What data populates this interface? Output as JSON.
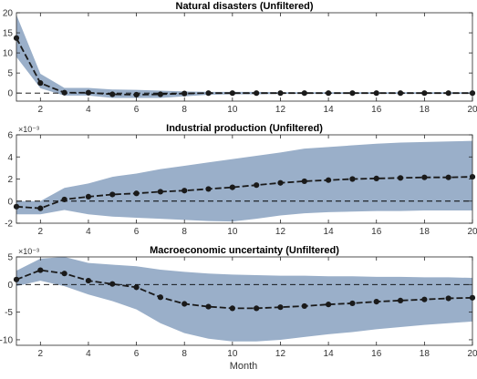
{
  "figure": {
    "xlabel": "Month"
  },
  "chart_data": [
    {
      "type": "line",
      "title": "Natural disasters (Unfiltered)",
      "xlabel": "",
      "ylabel": "",
      "x": [
        1,
        2,
        3,
        4,
        5,
        6,
        7,
        8,
        9,
        10,
        11,
        12,
        13,
        14,
        15,
        16,
        17,
        18,
        19,
        20
      ],
      "series": [
        {
          "values": [
            13.7,
            2.5,
            0.1,
            0.1,
            -0.3,
            -0.4,
            -0.3,
            -0.1,
            0,
            0,
            0,
            0,
            0,
            0,
            0,
            0,
            0,
            0,
            0,
            0
          ]
        }
      ],
      "band": {
        "lower": [
          9.0,
          1.2,
          -0.6,
          -0.6,
          -1.2,
          -1.2,
          -1.2,
          -0.8,
          -0.4,
          -0.3,
          -0.3,
          -0.2,
          -0.2,
          -0.2,
          -0.2,
          -0.2,
          -0.2,
          -0.2,
          -0.2,
          -0.2
        ],
        "upper": [
          19.5,
          4.8,
          1.3,
          1.3,
          0.9,
          0.8,
          0.6,
          0.4,
          0.3,
          0.3,
          0.3,
          0.2,
          0.2,
          0.2,
          0.2,
          0.2,
          0.2,
          0.2,
          0.2,
          0.2
        ]
      },
      "xlim": [
        1,
        20
      ],
      "ylim": [
        -2,
        20
      ],
      "xticks": [
        2,
        4,
        6,
        8,
        10,
        12,
        14,
        16,
        18,
        20
      ],
      "yticks": [
        0,
        5,
        10,
        15,
        20
      ],
      "exponent_label": "",
      "zero_line": true
    },
    {
      "type": "line",
      "title": "Industrial production (Unfiltered)",
      "xlabel": "",
      "ylabel": "",
      "x": [
        1,
        2,
        3,
        4,
        5,
        6,
        7,
        8,
        9,
        10,
        11,
        12,
        13,
        14,
        15,
        16,
        17,
        18,
        19,
        20
      ],
      "series": [
        {
          "values": [
            -0.5,
            -0.65,
            0.15,
            0.4,
            0.6,
            0.7,
            0.85,
            0.95,
            1.1,
            1.25,
            1.45,
            1.65,
            1.8,
            1.9,
            2.0,
            2.05,
            2.1,
            2.15,
            2.15,
            2.2
          ]
        }
      ],
      "band": {
        "lower": [
          -1.2,
          -1.2,
          -0.8,
          -1.2,
          -1.4,
          -1.5,
          -1.6,
          -1.7,
          -1.8,
          -1.85,
          -1.6,
          -1.3,
          -1.1,
          -1.0,
          -0.95,
          -0.9,
          -0.9,
          -0.85,
          -0.85,
          -0.85
        ],
        "upper": [
          0.0,
          0.0,
          1.2,
          1.6,
          2.2,
          2.5,
          2.9,
          3.2,
          3.5,
          3.8,
          4.1,
          4.4,
          4.75,
          4.9,
          5.05,
          5.2,
          5.3,
          5.35,
          5.4,
          5.45
        ]
      },
      "xlim": [
        1,
        20
      ],
      "ylim": [
        -2,
        6
      ],
      "xticks": [
        2,
        4,
        6,
        8,
        10,
        12,
        14,
        16,
        18,
        20
      ],
      "yticks": [
        -2,
        0,
        2,
        4,
        6
      ],
      "exponent_label": "×10⁻³",
      "zero_line": true
    },
    {
      "type": "line",
      "title": "Macroeconomic uncertainty (Unfiltered)",
      "xlabel": "",
      "ylabel": "",
      "x": [
        1,
        2,
        3,
        4,
        5,
        6,
        7,
        8,
        9,
        10,
        11,
        12,
        13,
        14,
        15,
        16,
        17,
        18,
        19,
        20
      ],
      "series": [
        {
          "values": [
            0.9,
            2.6,
            2.0,
            0.7,
            0.1,
            -0.5,
            -2.3,
            -3.5,
            -4.0,
            -4.3,
            -4.3,
            -4.1,
            -3.9,
            -3.6,
            -3.4,
            -3.1,
            -2.9,
            -2.7,
            -2.5,
            -2.4
          ]
        }
      ],
      "band": {
        "lower": [
          -0.3,
          0.7,
          -0.3,
          -1.8,
          -3.0,
          -4.5,
          -7.0,
          -8.8,
          -9.8,
          -10.3,
          -10.3,
          -10.0,
          -9.5,
          -9.0,
          -8.6,
          -8.1,
          -7.7,
          -7.3,
          -7.0,
          -6.7
        ],
        "upper": [
          2.5,
          4.7,
          5.0,
          3.9,
          3.6,
          3.3,
          2.7,
          2.3,
          2.0,
          1.8,
          1.7,
          1.6,
          1.6,
          1.5,
          1.5,
          1.4,
          1.4,
          1.3,
          1.3,
          1.2
        ]
      },
      "xlim": [
        1,
        20
      ],
      "ylim": [
        -11,
        5
      ],
      "xticks": [
        2,
        4,
        6,
        8,
        10,
        12,
        14,
        16,
        18,
        20
      ],
      "yticks": [
        -10,
        -5,
        0,
        5
      ],
      "exponent_label": "×10⁻³",
      "zero_line": true
    }
  ],
  "colors": {
    "band": "#9aafc9",
    "line": "#1a1a1a",
    "zero_line": "#000000",
    "axis": "#262626"
  }
}
